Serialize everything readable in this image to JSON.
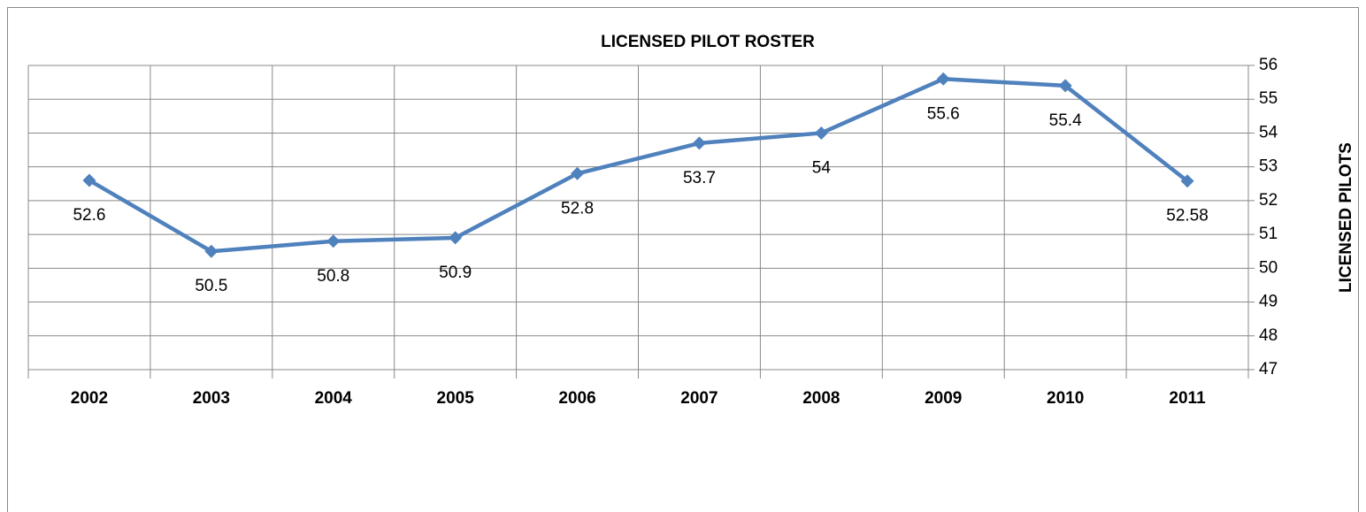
{
  "chart_data": {
    "type": "line",
    "title": "LICENSED PILOT ROSTER",
    "y_label": "LICENSED PILOTS",
    "categories": [
      "2002",
      "2003",
      "2004",
      "2005",
      "2006",
      "2007",
      "2008",
      "2009",
      "2010",
      "2011"
    ],
    "series": [
      {
        "name": "Licensed Pilots",
        "color": "#4f81bd",
        "values": [
          52.6,
          50.5,
          50.8,
          50.9,
          52.8,
          53.7,
          54,
          55.6,
          55.4,
          52.58
        ]
      }
    ],
    "ylim": [
      47,
      56
    ],
    "yticks": [
      47,
      48,
      49,
      50,
      51,
      52,
      53,
      54,
      55,
      56
    ],
    "grid": true,
    "y_axis_side": "right",
    "data_labels": true
  }
}
